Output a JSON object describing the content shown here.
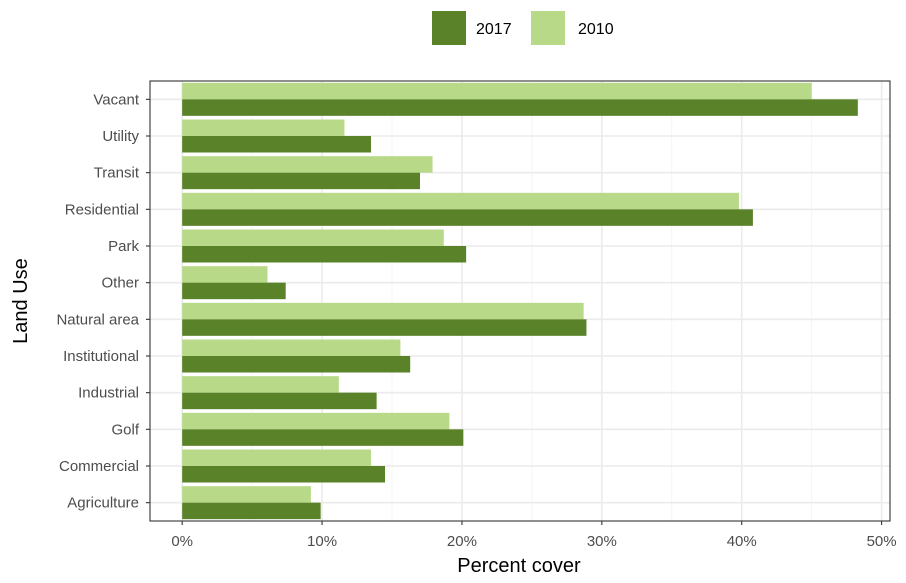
{
  "chart_data": {
    "type": "bar",
    "orientation": "horizontal",
    "title": "",
    "xlabel": "Percent cover",
    "ylabel": "Land Use",
    "categories": [
      "Vacant",
      "Utility",
      "Transit",
      "Residential",
      "Park",
      "Other",
      "Natural area",
      "Institutional",
      "Industrial",
      "Golf",
      "Commercial",
      "Agriculture"
    ],
    "series": [
      {
        "name": "2010",
        "color": "#b8d988",
        "values": [
          45.0,
          11.6,
          17.9,
          39.8,
          18.7,
          6.1,
          28.7,
          15.6,
          11.2,
          19.1,
          13.5,
          9.2
        ]
      },
      {
        "name": "2017",
        "color": "#5a8228",
        "values": [
          48.3,
          13.5,
          17.0,
          40.8,
          20.3,
          7.4,
          28.9,
          16.3,
          13.9,
          20.1,
          14.5,
          9.9
        ]
      }
    ],
    "xlim": [
      -2.3,
      50.6
    ],
    "xticks": [
      0,
      10,
      20,
      30,
      40,
      50
    ],
    "xtick_labels": [
      "0%",
      "10%",
      "20%",
      "30%",
      "40%",
      "50%"
    ],
    "grid": true,
    "legend": {
      "position": "top",
      "items": [
        {
          "label": "2017",
          "color": "#5a8228"
        },
        {
          "label": "2010",
          "color": "#b8d988"
        }
      ]
    }
  }
}
